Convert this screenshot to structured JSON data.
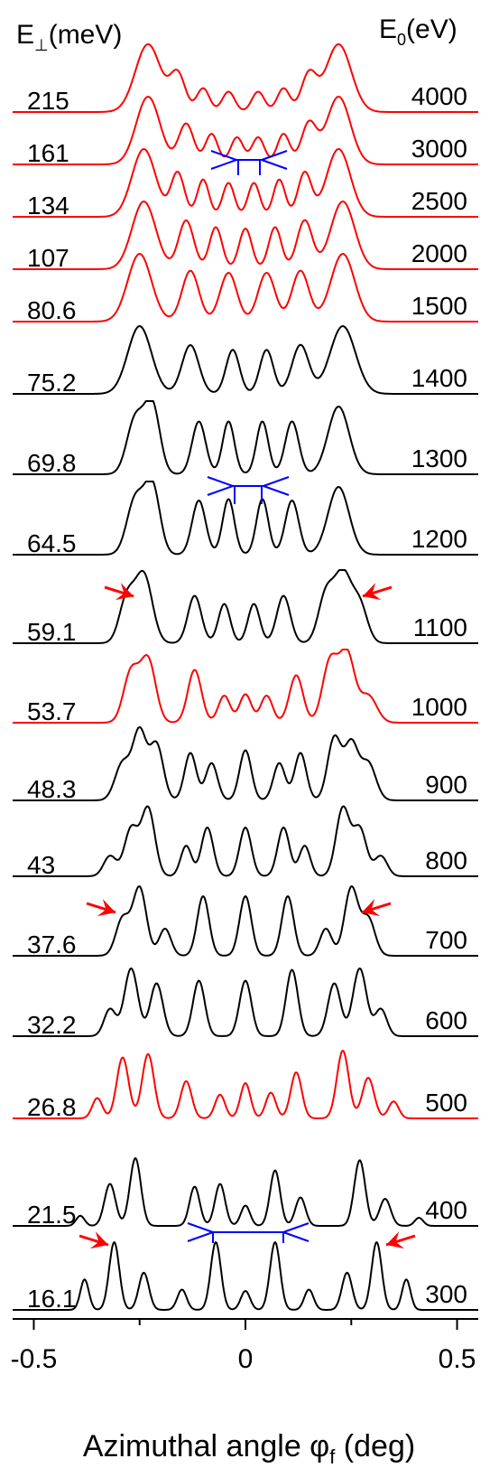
{
  "chart_data": {
    "type": "line",
    "left_header_main": "E",
    "left_header_sub": "⊥",
    "left_header_unit": "(meV)",
    "right_header_main": "E",
    "right_header_sub": "0",
    "right_header_unit": "(eV)",
    "xlabel_main": "Azimuthal angle φ",
    "xlabel_sub": "f",
    "xlabel_unit": " (deg)",
    "xlim": [
      -0.55,
      0.55
    ],
    "x_ticks": [
      "-0.5",
      "0",
      "0.5"
    ],
    "x_tick_values": [
      -0.5,
      0,
      0.5
    ],
    "colors": {
      "highlight": "#ff0000",
      "normal": "#000000",
      "guide": "#0000ff"
    },
    "series": [
      {
        "e_perp": "215",
        "e0": "4000",
        "color": "red",
        "peaks": [
          [
            -0.23,
            0.03,
            1.0
          ],
          [
            -0.16,
            0.018,
            0.55
          ],
          [
            -0.1,
            0.015,
            0.35
          ],
          [
            -0.04,
            0.015,
            0.3
          ],
          [
            0.03,
            0.015,
            0.3
          ],
          [
            0.09,
            0.015,
            0.35
          ],
          [
            0.15,
            0.018,
            0.55
          ],
          [
            0.22,
            0.03,
            1.0
          ]
        ]
      },
      {
        "e_perp": "161",
        "e0": "3000",
        "color": "red",
        "peaks": [
          [
            -0.23,
            0.028,
            1.0
          ],
          [
            -0.14,
            0.018,
            0.6
          ],
          [
            -0.08,
            0.015,
            0.45
          ],
          [
            -0.02,
            0.015,
            0.4
          ],
          [
            0.03,
            0.015,
            0.4
          ],
          [
            0.09,
            0.015,
            0.45
          ],
          [
            0.15,
            0.018,
            0.6
          ],
          [
            0.22,
            0.028,
            1.0
          ]
        ]
      },
      {
        "e_perp": "134",
        "e0": "2500",
        "color": "red",
        "peaks": [
          [
            -0.24,
            0.028,
            1.0
          ],
          [
            -0.16,
            0.016,
            0.65
          ],
          [
            -0.1,
            0.014,
            0.55
          ],
          [
            -0.04,
            0.014,
            0.5
          ],
          [
            0.02,
            0.014,
            0.5
          ],
          [
            0.08,
            0.014,
            0.55
          ],
          [
            0.14,
            0.016,
            0.65
          ],
          [
            0.22,
            0.028,
            1.0
          ]
        ]
      },
      {
        "e_perp": "107",
        "e0": "2000",
        "color": "red",
        "peaks": [
          [
            -0.24,
            0.028,
            1.0
          ],
          [
            -0.14,
            0.018,
            0.72
          ],
          [
            -0.07,
            0.015,
            0.62
          ],
          [
            0.0,
            0.015,
            0.6
          ],
          [
            0.07,
            0.015,
            0.62
          ],
          [
            0.14,
            0.018,
            0.72
          ],
          [
            0.23,
            0.028,
            1.0
          ]
        ]
      },
      {
        "e_perp": "80.6",
        "e0": "1500",
        "color": "red",
        "peaks": [
          [
            -0.25,
            0.028,
            1.0
          ],
          [
            -0.13,
            0.02,
            0.75
          ],
          [
            -0.04,
            0.02,
            0.72
          ],
          [
            0.05,
            0.02,
            0.72
          ],
          [
            0.13,
            0.02,
            0.75
          ],
          [
            0.23,
            0.028,
            1.0
          ]
        ]
      },
      {
        "e_perp": "75.2",
        "e0": "1400",
        "color": "black",
        "peaks": [
          [
            -0.25,
            0.028,
            1.0
          ],
          [
            -0.13,
            0.02,
            0.72
          ],
          [
            -0.03,
            0.016,
            0.65
          ],
          [
            0.05,
            0.016,
            0.65
          ],
          [
            0.13,
            0.02,
            0.72
          ],
          [
            0.23,
            0.03,
            1.0
          ]
        ]
      },
      {
        "e_perp": "69.8",
        "e0": "1300",
        "color": "black",
        "peaks": [
          [
            -0.26,
            0.02,
            0.82
          ],
          [
            -0.22,
            0.018,
            1.0
          ],
          [
            -0.11,
            0.016,
            0.78
          ],
          [
            -0.04,
            0.014,
            0.78
          ],
          [
            0.04,
            0.014,
            0.78
          ],
          [
            0.11,
            0.016,
            0.78
          ],
          [
            0.22,
            0.025,
            1.0
          ]
        ]
      },
      {
        "e_perp": "64.5",
        "e0": "1200",
        "color": "black",
        "peaks": [
          [
            -0.26,
            0.02,
            0.82
          ],
          [
            -0.22,
            0.018,
            1.0
          ],
          [
            -0.11,
            0.016,
            0.8
          ],
          [
            -0.04,
            0.014,
            0.82
          ],
          [
            0.04,
            0.014,
            0.82
          ],
          [
            0.11,
            0.016,
            0.8
          ],
          [
            0.22,
            0.025,
            1.0
          ]
        ]
      },
      {
        "e_perp": "59.1",
        "e0": "1100",
        "color": "black",
        "peaks": [
          [
            -0.28,
            0.018,
            0.65
          ],
          [
            -0.24,
            0.02,
            1.0
          ],
          [
            -0.12,
            0.016,
            0.7
          ],
          [
            -0.05,
            0.014,
            0.58
          ],
          [
            0.02,
            0.014,
            0.58
          ],
          [
            0.09,
            0.016,
            0.7
          ],
          [
            0.19,
            0.018,
            0.7
          ],
          [
            0.23,
            0.02,
            1.0
          ],
          [
            0.27,
            0.018,
            0.55
          ]
        ]
      },
      {
        "e_perp": "53.7",
        "e0": "1000",
        "color": "red",
        "peaks": [
          [
            -0.27,
            0.018,
            0.75
          ],
          [
            -0.23,
            0.018,
            0.92
          ],
          [
            -0.12,
            0.016,
            0.78
          ],
          [
            -0.05,
            0.014,
            0.4
          ],
          [
            0.0,
            0.014,
            0.42
          ],
          [
            0.05,
            0.014,
            0.4
          ],
          [
            0.12,
            0.016,
            0.7
          ],
          [
            0.2,
            0.018,
            0.9
          ],
          [
            0.24,
            0.018,
            1.0
          ],
          [
            0.29,
            0.02,
            0.4
          ]
        ]
      },
      {
        "e_perp": "48.3",
        "e0": "900",
        "color": "black",
        "peaks": [
          [
            -0.29,
            0.018,
            0.55
          ],
          [
            -0.25,
            0.016,
            1.0
          ],
          [
            -0.21,
            0.016,
            0.82
          ],
          [
            -0.13,
            0.014,
            0.7
          ],
          [
            -0.08,
            0.014,
            0.55
          ],
          [
            0.0,
            0.014,
            0.74
          ],
          [
            0.08,
            0.014,
            0.55
          ],
          [
            0.13,
            0.014,
            0.7
          ],
          [
            0.21,
            0.016,
            0.92
          ],
          [
            0.25,
            0.016,
            0.82
          ],
          [
            0.29,
            0.018,
            0.55
          ]
        ]
      },
      {
        "e_perp": "43",
        "e0": "800",
        "color": "black",
        "peaks": [
          [
            -0.32,
            0.015,
            0.3
          ],
          [
            -0.27,
            0.016,
            0.7
          ],
          [
            -0.23,
            0.016,
            1.0
          ],
          [
            -0.14,
            0.013,
            0.45
          ],
          [
            -0.09,
            0.014,
            0.72
          ],
          [
            0.0,
            0.014,
            0.72
          ],
          [
            0.09,
            0.014,
            0.72
          ],
          [
            0.14,
            0.013,
            0.45
          ],
          [
            0.23,
            0.016,
            1.0
          ],
          [
            0.27,
            0.016,
            0.7
          ],
          [
            0.32,
            0.015,
            0.3
          ]
        ]
      },
      {
        "e_perp": "37.6",
        "e0": "700",
        "color": "black",
        "peaks": [
          [
            -0.29,
            0.016,
            0.55
          ],
          [
            -0.25,
            0.016,
            1.0
          ],
          [
            -0.19,
            0.014,
            0.4
          ],
          [
            -0.1,
            0.014,
            0.88
          ],
          [
            0.0,
            0.014,
            0.88
          ],
          [
            0.1,
            0.014,
            0.88
          ],
          [
            0.19,
            0.014,
            0.4
          ],
          [
            0.25,
            0.016,
            1.0
          ],
          [
            0.29,
            0.016,
            0.55
          ]
        ]
      },
      {
        "e_perp": "32.2",
        "e0": "600",
        "color": "black",
        "peaks": [
          [
            -0.32,
            0.014,
            0.4
          ],
          [
            -0.27,
            0.016,
            1.0
          ],
          [
            -0.21,
            0.015,
            0.78
          ],
          [
            -0.11,
            0.014,
            0.82
          ],
          [
            0.0,
            0.014,
            0.82
          ],
          [
            0.11,
            0.014,
            0.98
          ],
          [
            0.21,
            0.015,
            0.78
          ],
          [
            0.27,
            0.016,
            1.0
          ],
          [
            0.32,
            0.014,
            0.4
          ]
        ]
      },
      {
        "e_perp": "26.8",
        "e0": "500",
        "color": "red",
        "peaks": [
          [
            -0.35,
            0.012,
            0.3
          ],
          [
            -0.29,
            0.014,
            0.9
          ],
          [
            -0.23,
            0.014,
            0.95
          ],
          [
            -0.14,
            0.013,
            0.55
          ],
          [
            -0.06,
            0.012,
            0.35
          ],
          [
            0.0,
            0.012,
            0.52
          ],
          [
            0.06,
            0.012,
            0.38
          ],
          [
            0.12,
            0.013,
            0.68
          ],
          [
            0.23,
            0.014,
            1.0
          ],
          [
            0.29,
            0.014,
            0.6
          ],
          [
            0.35,
            0.012,
            0.25
          ]
        ]
      },
      {
        "e_perp": "21.5",
        "e0": "400",
        "color": "black",
        "peaks": [
          [
            -0.39,
            0.01,
            0.15
          ],
          [
            -0.32,
            0.013,
            0.62
          ],
          [
            -0.26,
            0.013,
            1.0
          ],
          [
            -0.12,
            0.012,
            0.58
          ],
          [
            -0.06,
            0.012,
            0.62
          ],
          [
            0.0,
            0.011,
            0.3
          ],
          [
            0.07,
            0.012,
            0.82
          ],
          [
            0.13,
            0.012,
            0.42
          ],
          [
            0.27,
            0.013,
            0.97
          ],
          [
            0.33,
            0.013,
            0.4
          ],
          [
            0.41,
            0.01,
            0.12
          ]
        ]
      },
      {
        "e_perp": "16.1",
        "e0": "300",
        "color": "black",
        "peaks": [
          [
            -0.38,
            0.01,
            0.45
          ],
          [
            -0.31,
            0.012,
            1.0
          ],
          [
            -0.24,
            0.012,
            0.55
          ],
          [
            -0.15,
            0.011,
            0.3
          ],
          [
            -0.07,
            0.012,
            1.0
          ],
          [
            0.0,
            0.011,
            0.28
          ],
          [
            0.07,
            0.012,
            1.0
          ],
          [
            0.15,
            0.011,
            0.3
          ],
          [
            0.24,
            0.012,
            0.55
          ],
          [
            0.31,
            0.012,
            1.0
          ],
          [
            0.38,
            0.01,
            0.45
          ]
        ]
      }
    ]
  }
}
